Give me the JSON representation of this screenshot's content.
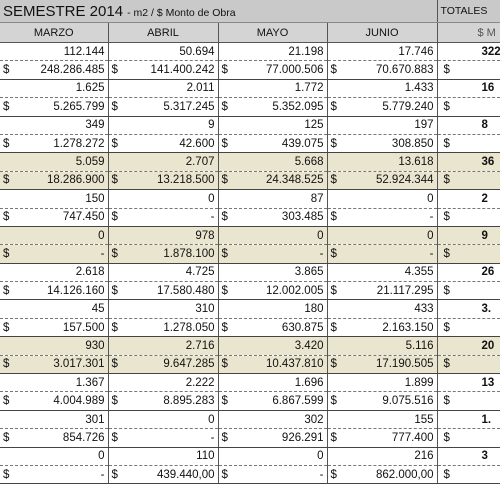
{
  "header": {
    "title": "SEMESTRE 2014",
    "subtitle": "- m2 / $ Monto de Obra",
    "totals": "TOTALES",
    "totals_sub": "$ M"
  },
  "columns": [
    "MARZO",
    "ABRIL",
    "MAYO",
    "JUNIO"
  ],
  "currency": "$",
  "rows": [
    {
      "months": [
        "112.144",
        "50.694",
        "21.198",
        "17.746"
      ],
      "total": "322",
      "amounts": [
        "248.286.485",
        "141.400.242",
        "77.000.506",
        "70.670.883"
      ],
      "shaded": false
    },
    {
      "months": [
        "1.625",
        "2.011",
        "1.772",
        "1.433"
      ],
      "total": "16",
      "amounts": [
        "5.265.799",
        "5.317.245",
        "5.352.095",
        "5.779.240"
      ],
      "shaded": false
    },
    {
      "months": [
        "349",
        "9",
        "125",
        "197"
      ],
      "total": "8",
      "amounts": [
        "1.278.272",
        "42.600",
        "439.075",
        "308.850"
      ],
      "shaded": false
    },
    {
      "months": [
        "5.059",
        "2.707",
        "5.668",
        "13.618"
      ],
      "total": "36",
      "amounts": [
        "18.286.900",
        "13.218.500",
        "24.348.525",
        "52.924.344"
      ],
      "shaded": true
    },
    {
      "months": [
        "150",
        "0",
        "87",
        "0"
      ],
      "total": "2",
      "amounts": [
        "747.450",
        "-",
        "303.485",
        "-"
      ],
      "shaded": false
    },
    {
      "months": [
        "0",
        "978",
        "0",
        "0"
      ],
      "total": "9",
      "amounts": [
        "-",
        "1.878.100",
        "-",
        "-"
      ],
      "shaded": true
    },
    {
      "months": [
        "2.618",
        "4.725",
        "3.865",
        "4.355"
      ],
      "total": "26",
      "amounts": [
        "14.126.160",
        "17.580.480",
        "12.002.005",
        "21.117.295"
      ],
      "shaded": false
    },
    {
      "months": [
        "45",
        "310",
        "180",
        "433"
      ],
      "total": "3.",
      "amounts": [
        "157.500",
        "1.278.050",
        "630.875",
        "2.163.150"
      ],
      "shaded": false
    },
    {
      "months": [
        "930",
        "2.716",
        "3.420",
        "5.116"
      ],
      "total": "20",
      "amounts": [
        "3.017.301",
        "9.647.285",
        "10.437.810",
        "17.190.505"
      ],
      "shaded": true
    },
    {
      "months": [
        "1.367",
        "2.222",
        "1.696",
        "1.899"
      ],
      "total": "13",
      "amounts": [
        "4.004.989",
        "8.895.283",
        "6.867.599",
        "9.075.516"
      ],
      "shaded": false
    },
    {
      "months": [
        "301",
        "0",
        "302",
        "155"
      ],
      "total": "1.",
      "amounts": [
        "854.726",
        "-",
        "926.291",
        "777.400"
      ],
      "shaded": false
    },
    {
      "months": [
        "0",
        "110",
        "0",
        "216"
      ],
      "total": "3",
      "amounts": [
        "-",
        "439.440,00",
        "-",
        "862.000,00"
      ],
      "shaded": false
    }
  ]
}
